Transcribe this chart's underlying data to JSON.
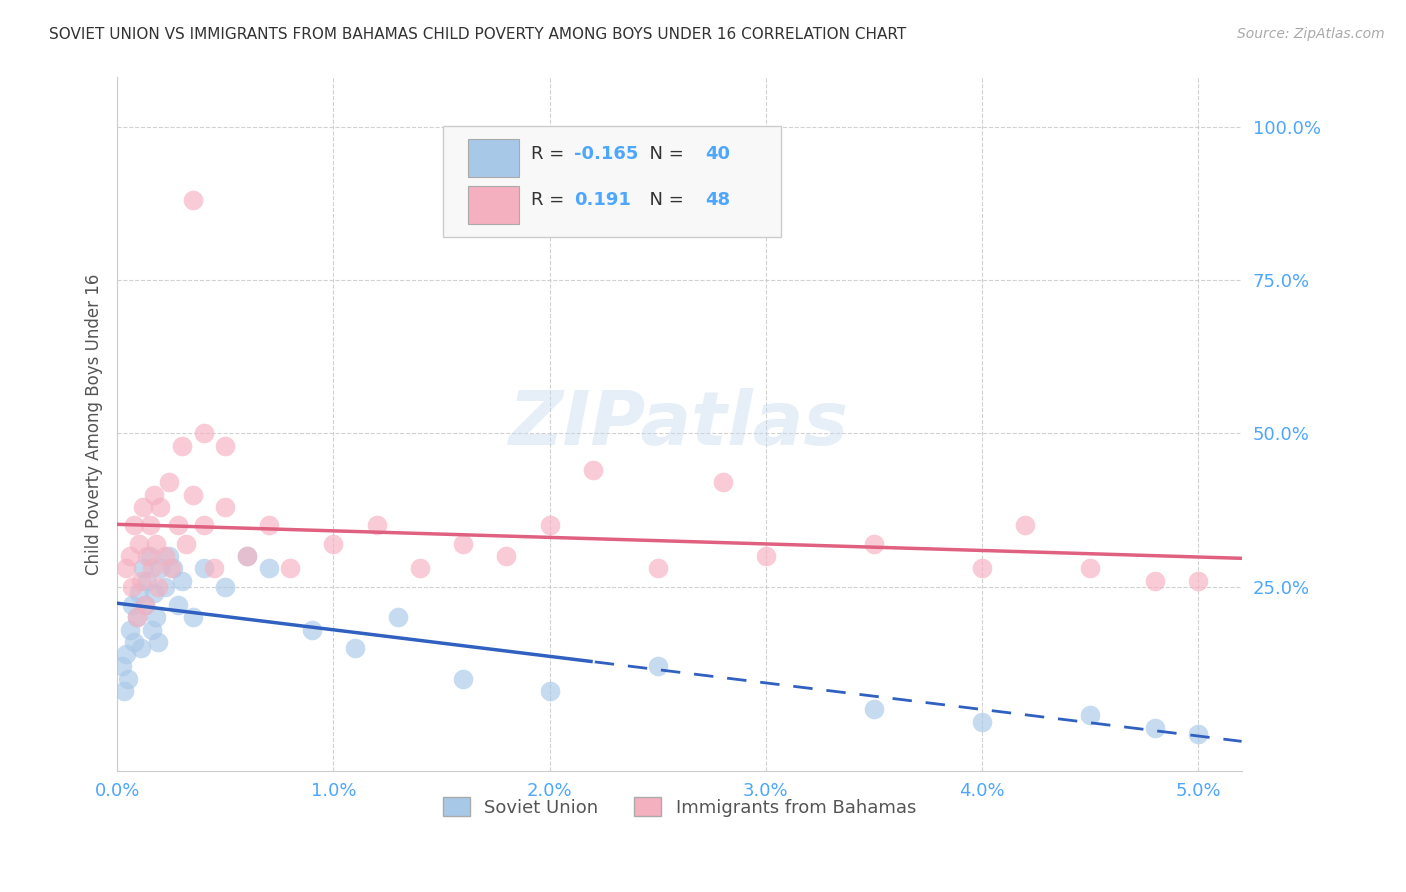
{
  "title": "SOVIET UNION VS IMMIGRANTS FROM BAHAMAS CHILD POVERTY AMONG BOYS UNDER 16 CORRELATION CHART",
  "source": "Source: ZipAtlas.com",
  "ylabel": "Child Poverty Among Boys Under 16",
  "x_tick_labels": [
    "0.0%",
    "1.0%",
    "2.0%",
    "3.0%",
    "4.0%",
    "5.0%"
  ],
  "x_tick_positions": [
    0.0,
    1.0,
    2.0,
    3.0,
    4.0,
    5.0
  ],
  "y_tick_labels": [
    "25.0%",
    "50.0%",
    "75.0%",
    "100.0%"
  ],
  "y_tick_positions": [
    25.0,
    50.0,
    75.0,
    100.0
  ],
  "xlim": [
    0.0,
    5.2
  ],
  "ylim": [
    -5.0,
    108.0
  ],
  "legend_labels": [
    "Soviet Union",
    "Immigrants from Bahamas"
  ],
  "legend_R": [
    -0.165,
    0.191
  ],
  "legend_N": [
    40,
    48
  ],
  "color_soviet": "#a8c8e8",
  "color_bahamas": "#f5b0c0",
  "color_soviet_line": "#3060c0",
  "color_bahamas_line": "#e06080",
  "color_axis_labels": "#4da6ff",
  "background_color": "#ffffff",
  "watermark": "ZIPatlas",
  "soviet_x": [
    0.02,
    0.03,
    0.04,
    0.05,
    0.06,
    0.07,
    0.08,
    0.09,
    0.1,
    0.11,
    0.12,
    0.13,
    0.14,
    0.15,
    0.16,
    0.17,
    0.18,
    0.19,
    0.2,
    0.22,
    0.24,
    0.26,
    0.28,
    0.3,
    0.35,
    0.4,
    0.5,
    0.6,
    0.7,
    0.9,
    1.1,
    1.3,
    1.6,
    2.0,
    2.5,
    3.5,
    4.0,
    4.5,
    4.8,
    5.0
  ],
  "soviet_y": [
    12,
    8,
    14,
    10,
    18,
    22,
    16,
    20,
    24,
    15,
    28,
    22,
    26,
    30,
    18,
    24,
    20,
    16,
    28,
    25,
    30,
    28,
    22,
    26,
    20,
    28,
    25,
    30,
    28,
    18,
    15,
    20,
    10,
    8,
    12,
    5,
    3,
    4,
    2,
    1
  ],
  "bahamas_x": [
    0.04,
    0.06,
    0.07,
    0.08,
    0.09,
    0.1,
    0.11,
    0.12,
    0.13,
    0.14,
    0.15,
    0.16,
    0.17,
    0.18,
    0.19,
    0.2,
    0.22,
    0.24,
    0.25,
    0.28,
    0.3,
    0.32,
    0.35,
    0.4,
    0.45,
    0.5,
    0.6,
    0.7,
    0.8,
    1.0,
    1.2,
    1.4,
    1.6,
    1.8,
    2.0,
    2.5,
    2.8,
    3.0,
    3.5,
    4.0,
    4.2,
    4.5,
    4.8,
    5.0,
    0.35,
    0.4,
    0.5,
    2.2
  ],
  "bahamas_y": [
    28,
    30,
    25,
    35,
    20,
    32,
    26,
    38,
    22,
    30,
    35,
    28,
    40,
    32,
    25,
    38,
    30,
    42,
    28,
    35,
    48,
    32,
    40,
    35,
    28,
    38,
    30,
    35,
    28,
    32,
    35,
    28,
    32,
    30,
    35,
    28,
    42,
    30,
    32,
    28,
    35,
    28,
    26,
    26,
    88,
    50,
    48,
    44
  ]
}
